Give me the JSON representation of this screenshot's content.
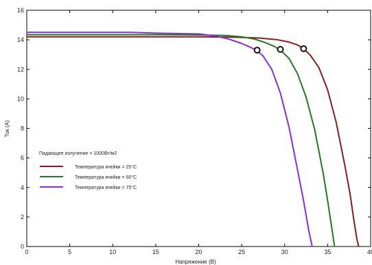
{
  "chart_data": {
    "type": "line",
    "title": "",
    "xlabel": "Напряжение (В)",
    "ylabel": "Ток (А)",
    "xlim": [
      0,
      40
    ],
    "ylim": [
      0,
      16
    ],
    "xticks": [
      0,
      5,
      10,
      15,
      20,
      25,
      30,
      35,
      40
    ],
    "yticks": [
      0,
      2,
      4,
      6,
      8,
      10,
      12,
      14,
      16
    ],
    "grid": false,
    "legend_placement": "lower-left",
    "legend_title": "Падающее излучение = 1000Вт/м2",
    "series": [
      {
        "name": "Температура ячейки = 25°C",
        "color": "#8b1a1a",
        "x": [
          0,
          5,
          10,
          15,
          20,
          24,
          27,
          29,
          30.5,
          31.5,
          32.2,
          33,
          34,
          35,
          36,
          37,
          37.6,
          38.1,
          38.4,
          38.6
        ],
        "y": [
          14.2,
          14.2,
          14.2,
          14.2,
          14.2,
          14.18,
          14.12,
          14.02,
          13.85,
          13.65,
          13.4,
          12.95,
          12.1,
          10.6,
          8.4,
          5.5,
          3.6,
          1.6,
          0.5,
          0
        ]
      },
      {
        "name": "Температура ячейки = 50°C",
        "color": "#1e7b1e",
        "x": [
          0,
          5,
          10,
          15,
          20,
          23,
          25,
          26.5,
          27.8,
          28.8,
          29.5,
          30.5,
          31.5,
          32.5,
          33.5,
          34.5,
          35,
          35.5,
          35.8
        ],
        "y": [
          14.35,
          14.35,
          14.35,
          14.35,
          14.33,
          14.3,
          14.2,
          14.05,
          13.8,
          13.55,
          13.3,
          12.75,
          11.7,
          10.1,
          7.9,
          4.9,
          3.1,
          1.2,
          0
        ]
      },
      {
        "name": "Температура ячейки = 75°C",
        "color": "#8a2be2",
        "x": [
          0,
          5,
          10,
          12,
          15,
          18,
          20,
          22,
          23.5,
          25,
          26,
          26.8,
          27.5,
          28.5,
          29.5,
          30.5,
          31.5,
          32.2,
          32.8,
          33.2
        ],
        "y": [
          14.5,
          14.5,
          14.5,
          14.5,
          14.45,
          14.42,
          14.4,
          14.25,
          14.05,
          13.75,
          13.5,
          13.25,
          12.9,
          12.0,
          10.4,
          8.1,
          5.2,
          3.1,
          1.1,
          0
        ]
      }
    ],
    "markers": [
      {
        "x": 26.8,
        "y": 13.3,
        "series": "Температура ячейки = 75°C"
      },
      {
        "x": 29.5,
        "y": 13.35,
        "series": "Температура ячейки = 50°C"
      },
      {
        "x": 32.2,
        "y": 13.4,
        "series": "Температура ячейки = 25°C"
      }
    ]
  }
}
